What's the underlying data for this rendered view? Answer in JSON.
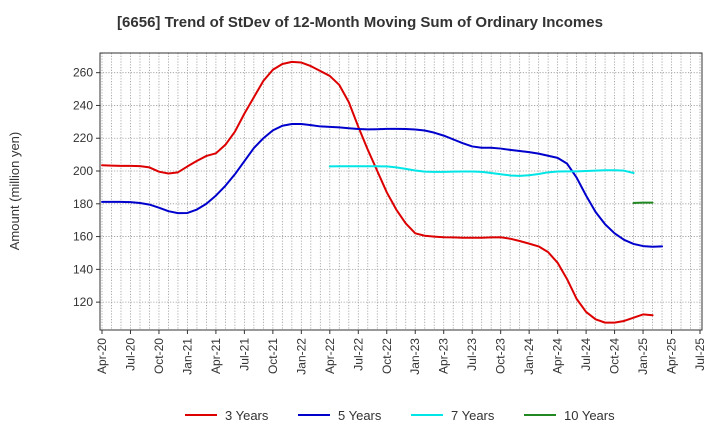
{
  "chart_data": {
    "type": "line",
    "title": "[6656]  Trend of StDev of 12-Month Moving Sum of Ordinary Incomes",
    "xlabel": "",
    "ylabel": "Amount (million yen)",
    "ylim": [
      103,
      272
    ],
    "yticks": [
      120,
      140,
      160,
      180,
      200,
      220,
      240,
      260
    ],
    "x_tick_labels": [
      "Apr-20",
      "Jul-20",
      "Oct-20",
      "Jan-21",
      "Apr-21",
      "Jul-21",
      "Oct-21",
      "Jan-22",
      "Apr-22",
      "Jul-22",
      "Oct-22",
      "Jan-23",
      "Apr-23",
      "Jul-23",
      "Oct-23",
      "Jan-24",
      "Apr-24",
      "Jul-24",
      "Oct-24",
      "Jan-25",
      "Apr-25",
      "Jul-25"
    ],
    "grid": true,
    "legend_position": "bottom",
    "series": [
      {
        "name": "3 Years",
        "color": "#dd0000",
        "start_month_index": 0,
        "values": [
          203.5,
          203.3,
          203.1,
          203.1,
          203,
          202.2,
          199.6,
          198.5,
          199.2,
          202.8,
          206.2,
          209.2,
          210.8,
          216,
          224,
          235,
          245,
          255,
          261.8,
          265.3,
          266.6,
          266.2,
          264,
          261,
          258,
          252.5,
          242,
          227,
          213,
          200,
          187,
          176.5,
          168,
          162,
          160.5,
          160,
          159.6,
          159.5,
          159.3,
          159.3,
          159.3,
          159.5,
          159.6,
          158.7,
          157.3,
          155.7,
          154,
          150.5,
          144,
          134,
          122,
          114,
          109.5,
          107.5,
          107.5,
          108.5,
          110.5,
          112.5,
          112
        ]
      },
      {
        "name": "5 Years",
        "color": "#0000cc",
        "start_month_index": 0,
        "values": [
          181.2,
          181.2,
          181.2,
          181,
          180.5,
          179.5,
          177.6,
          175.5,
          174.3,
          174.4,
          176.5,
          180,
          185,
          191,
          198,
          206,
          214,
          220,
          224.8,
          227.6,
          228.7,
          228.7,
          228,
          227.2,
          226.9,
          226.6,
          226.1,
          225.6,
          225.4,
          225.5,
          225.7,
          225.7,
          225.6,
          225.3,
          224.7,
          223.4,
          221.6,
          219.3,
          217,
          215,
          214.2,
          214.2,
          213.7,
          212.9,
          212.2,
          211.5,
          210.6,
          209.3,
          208,
          204.5,
          196,
          185,
          175,
          167.5,
          162,
          158,
          155.5,
          154.2,
          153.8,
          154
        ]
      },
      {
        "name": "7 Years",
        "color": "#00e5e5",
        "start_month_index": 24,
        "values": [
          202.8,
          202.9,
          202.9,
          202.9,
          202.9,
          202.9,
          202.8,
          202.2,
          201.3,
          200.3,
          199.6,
          199.5,
          199.5,
          199.6,
          199.7,
          199.7,
          199.5,
          198.8,
          198,
          197.3,
          197,
          197.4,
          198.2,
          199.2,
          199.7,
          199.8,
          199.8,
          200,
          200.2,
          200.5,
          200.5,
          200.2,
          198.8
        ]
      },
      {
        "name": "10 Years",
        "color": "#228822",
        "start_month_index": 56,
        "values": [
          180.5,
          180.7,
          180.7
        ]
      }
    ]
  }
}
